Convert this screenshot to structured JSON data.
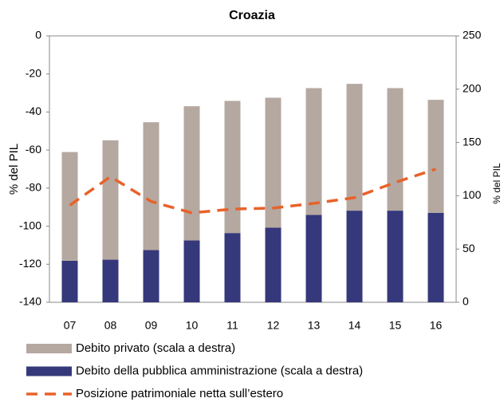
{
  "chart_data": {
    "type": "bar-line",
    "title": "Croazia",
    "ylabel": "% del PIL",
    "y2label": "% del PIL",
    "categories": [
      "07",
      "08",
      "09",
      "10",
      "11",
      "12",
      "13",
      "14",
      "15",
      "16"
    ],
    "ylim": [
      -140,
      0
    ],
    "yticks": [
      0,
      -20,
      -40,
      -60,
      -80,
      -100,
      -120,
      -140
    ],
    "y2lim": [
      0,
      250
    ],
    "y2ticks": [
      0,
      50,
      100,
      150,
      200,
      250
    ],
    "series": [
      {
        "name": "Debito privato (scala a destra)",
        "color": "#b5a8a0",
        "axis": "y2",
        "kind": "bar",
        "values": [
          102,
          112,
          120,
          126,
          124,
          122,
          119,
          119,
          115,
          106
        ]
      },
      {
        "name": "Debito della pubblica amministrazione (scala a destra)",
        "color": "#35387a",
        "axis": "y2",
        "kind": "bar",
        "values": [
          39,
          40,
          49,
          58,
          65,
          70,
          82,
          86,
          86,
          84
        ]
      },
      {
        "name": "Posizione patrimoniale netta sull’estero",
        "color": "#e8622a",
        "axis": "y",
        "kind": "line",
        "values": [
          -89,
          -74,
          -87,
          -93,
          -91,
          -90.5,
          -88,
          -85,
          -77,
          -70
        ]
      }
    ]
  }
}
